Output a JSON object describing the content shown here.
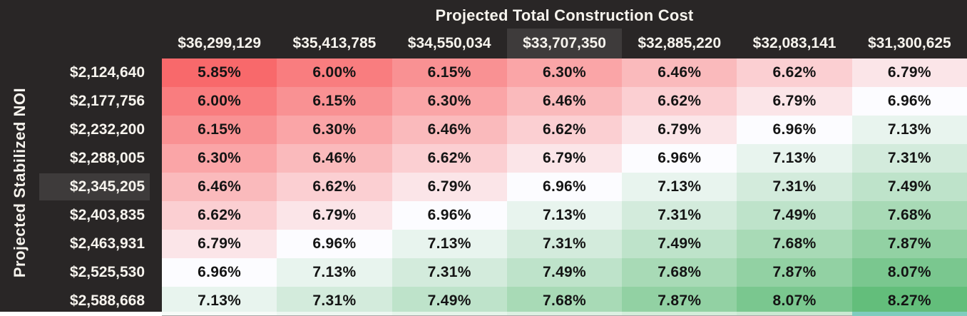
{
  "title": "Projected Total Construction Cost",
  "side_label": "Projected Stabilized NOI",
  "colors": {
    "background": "#292626",
    "header_text": "#F7F4EE",
    "cell_text": "#141414",
    "highlight_bg": "#3E3B3B",
    "bottom_edge_left": "#FFFFFF",
    "bottom_edge_right": "#7FCCBE"
  },
  "highlight": {
    "column_index": 3,
    "row_index": 4
  },
  "chart_data": {
    "type": "heatmap",
    "title": "Projected Total Construction Cost",
    "xlabel": "Projected Total Construction Cost",
    "ylabel": "Projected Stabilized NOI",
    "value_format": "percent_2dp",
    "legend": "none",
    "grid": "off",
    "columns": [
      "$36,299,129",
      "$35,413,785",
      "$34,550,034",
      "$33,707,350",
      "$32,885,220",
      "$32,083,141",
      "$31,300,625"
    ],
    "rows": [
      "$2,124,640",
      "$2,177,756",
      "$2,232,200",
      "$2,288,005",
      "$2,345,205",
      "$2,403,835",
      "$2,463,931",
      "$2,525,530",
      "$2,588,668"
    ],
    "values": [
      [
        5.85,
        6.0,
        6.15,
        6.3,
        6.46,
        6.62,
        6.79
      ],
      [
        6.0,
        6.15,
        6.3,
        6.46,
        6.62,
        6.79,
        6.96
      ],
      [
        6.15,
        6.3,
        6.46,
        6.62,
        6.79,
        6.96,
        7.13
      ],
      [
        6.3,
        6.46,
        6.62,
        6.79,
        6.96,
        7.13,
        7.31
      ],
      [
        6.46,
        6.62,
        6.79,
        6.96,
        7.13,
        7.31,
        7.49
      ],
      [
        6.62,
        6.79,
        6.96,
        7.13,
        7.31,
        7.49,
        7.68
      ],
      [
        6.79,
        6.96,
        7.13,
        7.31,
        7.49,
        7.68,
        7.87
      ],
      [
        6.96,
        7.13,
        7.31,
        7.49,
        7.68,
        7.87,
        8.07
      ],
      [
        7.13,
        7.31,
        7.49,
        7.68,
        7.87,
        8.07,
        8.27
      ]
    ],
    "color_scale": {
      "min": {
        "value": 5.85,
        "color": "#F8696B"
      },
      "mid": {
        "value": 6.96,
        "color": "#FCFCFF"
      },
      "max": {
        "value": 8.27,
        "color": "#63BE7B"
      }
    },
    "highlighted_column": "$33,707,350",
    "highlighted_row": "$2,345,205"
  }
}
